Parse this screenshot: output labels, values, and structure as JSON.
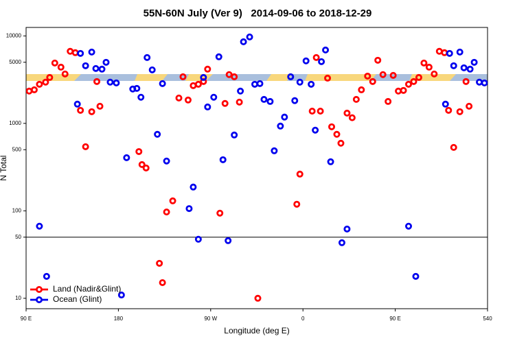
{
  "chart_data": {
    "type": "scatter",
    "title": "55N-60N July (Ver 9)   2014-09-06 to 2018-12-29",
    "x_label": "Longitude (deg E)",
    "y_label": "N Total",
    "log_y": true,
    "legend": "bottom-left",
    "hline": 50,
    "xlim": [
      90,
      540
    ],
    "ylim": [
      7.6,
      12500
    ],
    "xticks": [
      {
        "value": 90,
        "label": "90 E"
      },
      180,
      {
        "value": 270,
        "label": "90 W"
      },
      {
        "value": 360,
        "label": "0"
      },
      {
        "value": 450,
        "label": "90 E"
      },
      540
    ],
    "yticks": [
      10,
      50,
      100,
      500,
      1000,
      5000,
      10000
    ],
    "series": [
      {
        "name": "Land (Nadir&Glint)",
        "color": "#ff0000",
        "x": [
          93,
          98,
          103,
          109,
          113,
          118,
          124,
          128,
          133,
          138,
          143,
          148,
          154,
          159,
          162,
          200,
          203,
          207,
          220,
          223,
          227,
          233,
          239,
          243,
          248,
          253,
          258,
          263,
          267,
          279,
          284,
          288,
          293,
          298,
          316,
          354,
          357,
          369,
          373,
          377,
          384,
          388,
          393,
          397,
          403,
          408,
          412,
          417,
          423,
          428,
          433,
          438,
          443,
          448,
          453,
          458,
          463,
          468,
          473,
          478,
          483,
          488,
          493,
          498,
          502,
          507,
          513,
          519,
          522
        ],
        "values": [
          2340,
          2420,
          2800,
          2960,
          3350,
          4900,
          4390,
          3670,
          6670,
          6430,
          1410,
          541,
          1360,
          3010,
          1570,
          476,
          338,
          309,
          25.1,
          15.1,
          97,
          130,
          1950,
          3410,
          1850,
          2700,
          2800,
          3010,
          4170,
          94,
          1690,
          3610,
          3410,
          1750,
          10,
          119,
          263,
          1380,
          5660,
          1380,
          3290,
          914,
          750,
          593,
          1310,
          1160,
          1880,
          2420,
          3470,
          3010,
          5270,
          3610,
          1780,
          3540,
          2340,
          2380,
          2800,
          3010,
          3350,
          4900,
          4390,
          3670,
          6670,
          6430,
          1410,
          531,
          1360,
          3010,
          1570
        ]
      },
      {
        "name": "Ocean (Glint)",
        "color": "#0000ee",
        "x": [
          103,
          110,
          140,
          143,
          148,
          154,
          158,
          164,
          168,
          172,
          178,
          183,
          188,
          194,
          198,
          202,
          208,
          213,
          218,
          223,
          227,
          249,
          253,
          258,
          263,
          267,
          273,
          278,
          282,
          287,
          293,
          299,
          302,
          308,
          313,
          318,
          322,
          328,
          332,
          338,
          342,
          348,
          352,
          357,
          363,
          368,
          372,
          378,
          382,
          387,
          398,
          403,
          463,
          470,
          499,
          503,
          507,
          513,
          517,
          523,
          527,
          532,
          537
        ],
        "values": [
          66.7,
          17.8,
          1660,
          6310,
          4560,
          6540,
          4240,
          4170,
          4990,
          2960,
          2900,
          10.9,
          405,
          2470,
          2510,
          1990,
          5660,
          4090,
          750,
          2850,
          371,
          106,
          187,
          47.3,
          3350,
          1540,
          1990,
          5770,
          384,
          45.6,
          736,
          2340,
          8570,
          9730,
          2800,
          2850,
          1880,
          1780,
          486,
          931,
          1180,
          3410,
          1820,
          2960,
          5180,
          2800,
          836,
          5080,
          6900,
          364,
          43.2,
          61.9,
          66.7,
          17.8,
          1660,
          6310,
          4560,
          6540,
          4320,
          4170,
          4990,
          2960,
          2900
        ]
      }
    ]
  }
}
